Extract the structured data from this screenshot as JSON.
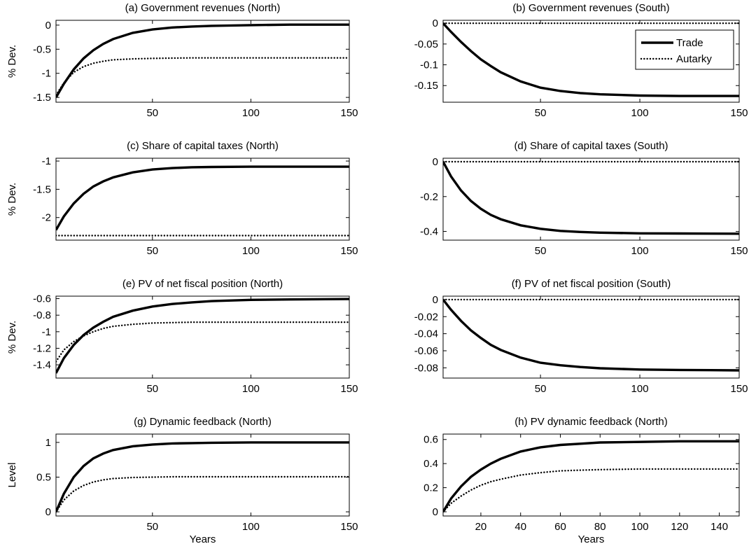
{
  "chart_data": [
    {
      "id": "a",
      "type": "line",
      "title": "(a) Government revenues (North)",
      "ylabel": "% Dev.",
      "xlabel": "",
      "xlim": [
        1,
        150
      ],
      "ylim": [
        -1.6,
        0.1
      ],
      "xticks": [
        50,
        100,
        150
      ],
      "yticks": [
        0,
        -0.5,
        -1,
        -1.5
      ],
      "ytick_labels": [
        "0",
        "-0.5",
        "-1",
        "-1.5"
      ],
      "series": [
        {
          "name": "Trade",
          "style": "solid",
          "x": [
            1,
            5,
            10,
            15,
            20,
            25,
            30,
            40,
            50,
            60,
            70,
            80,
            100,
            120,
            150
          ],
          "y": [
            -1.5,
            -1.22,
            -0.92,
            -0.69,
            -0.52,
            -0.39,
            -0.29,
            -0.16,
            -0.09,
            -0.05,
            -0.03,
            -0.015,
            0.0,
            0.01,
            0.01
          ]
        },
        {
          "name": "Autarky",
          "style": "dotted",
          "x": [
            1,
            5,
            10,
            15,
            20,
            25,
            30,
            40,
            50,
            60,
            70,
            80,
            100,
            120,
            150
          ],
          "y": [
            -1.45,
            -1.2,
            -0.98,
            -0.86,
            -0.79,
            -0.75,
            -0.72,
            -0.7,
            -0.69,
            -0.685,
            -0.68,
            -0.68,
            -0.68,
            -0.68,
            -0.68
          ]
        }
      ]
    },
    {
      "id": "b",
      "type": "line",
      "title": "(b) Government revenues (South)",
      "ylabel": "",
      "xlabel": "",
      "xlim": [
        1,
        150
      ],
      "ylim": [
        -0.19,
        0.007
      ],
      "xticks": [
        50,
        100,
        150
      ],
      "yticks": [
        0,
        -0.05,
        -0.1,
        -0.15
      ],
      "ytick_labels": [
        "0",
        "-0.05",
        "-0.1",
        "-0.15"
      ],
      "legend": {
        "placement": "top-right",
        "entries": [
          "Trade",
          "Autarky"
        ]
      },
      "series": [
        {
          "name": "Trade",
          "style": "solid",
          "x": [
            1,
            5,
            10,
            15,
            20,
            25,
            30,
            40,
            50,
            60,
            70,
            80,
            100,
            120,
            150
          ],
          "y": [
            0.0,
            -0.021,
            -0.045,
            -0.067,
            -0.087,
            -0.103,
            -0.118,
            -0.14,
            -0.155,
            -0.163,
            -0.168,
            -0.171,
            -0.174,
            -0.175,
            -0.175
          ]
        },
        {
          "name": "Autarky",
          "style": "dotted",
          "x": [
            1,
            150
          ],
          "y": [
            0,
            0
          ]
        }
      ]
    },
    {
      "id": "c",
      "type": "line",
      "title": "(c) Share of capital taxes (North)",
      "ylabel": "% Dev.",
      "xlabel": "",
      "xlim": [
        1,
        150
      ],
      "ylim": [
        -2.4,
        -0.95
      ],
      "xticks": [
        50,
        100,
        150
      ],
      "yticks": [
        -1,
        -1.5,
        -2
      ],
      "ytick_labels": [
        "-1",
        "-1.5",
        "-2"
      ],
      "series": [
        {
          "name": "Trade",
          "style": "solid",
          "x": [
            1,
            5,
            10,
            15,
            20,
            25,
            30,
            40,
            50,
            60,
            70,
            80,
            100,
            120,
            150
          ],
          "y": [
            -2.22,
            -1.98,
            -1.75,
            -1.58,
            -1.45,
            -1.36,
            -1.29,
            -1.2,
            -1.15,
            -1.125,
            -1.11,
            -1.105,
            -1.1,
            -1.1,
            -1.1
          ]
        },
        {
          "name": "Autarky",
          "style": "dotted",
          "x": [
            1,
            150
          ],
          "y": [
            -2.32,
            -2.32
          ]
        }
      ]
    },
    {
      "id": "d",
      "type": "line",
      "title": "(d) Share of capital taxes (South)",
      "ylabel": "",
      "xlabel": "",
      "xlim": [
        1,
        150
      ],
      "ylim": [
        -0.45,
        0.02
      ],
      "xticks": [
        50,
        100,
        150
      ],
      "yticks": [
        0,
        -0.2,
        -0.4
      ],
      "ytick_labels": [
        "0",
        "-0.2",
        "-0.4"
      ],
      "series": [
        {
          "name": "Trade",
          "style": "solid",
          "x": [
            1,
            5,
            10,
            15,
            20,
            25,
            30,
            40,
            50,
            60,
            70,
            80,
            100,
            120,
            150
          ],
          "y": [
            0.0,
            -0.085,
            -0.165,
            -0.225,
            -0.27,
            -0.305,
            -0.33,
            -0.365,
            -0.385,
            -0.397,
            -0.403,
            -0.407,
            -0.411,
            -0.412,
            -0.413
          ]
        },
        {
          "name": "Autarky",
          "style": "dotted",
          "x": [
            1,
            150
          ],
          "y": [
            0,
            0
          ]
        }
      ]
    },
    {
      "id": "e",
      "type": "line",
      "title": "(e) PV of net fiscal position (North)",
      "ylabel": "% Dev.",
      "xlabel": "",
      "xlim": [
        1,
        150
      ],
      "ylim": [
        -1.56,
        -0.57
      ],
      "xticks": [
        50,
        100,
        150
      ],
      "yticks": [
        -0.6,
        -0.8,
        -1,
        -1.2,
        -1.4
      ],
      "ytick_labels": [
        "-0.6",
        "-0.8",
        "-1",
        "-1.2",
        "-1.4"
      ],
      "series": [
        {
          "name": "Trade",
          "style": "solid",
          "x": [
            1,
            5,
            10,
            15,
            20,
            25,
            30,
            40,
            50,
            60,
            70,
            80,
            100,
            120,
            150
          ],
          "y": [
            -1.5,
            -1.32,
            -1.16,
            -1.04,
            -0.95,
            -0.88,
            -0.82,
            -0.745,
            -0.695,
            -0.665,
            -0.645,
            -0.63,
            -0.615,
            -0.61,
            -0.605
          ]
        },
        {
          "name": "Autarky",
          "style": "dotted",
          "x": [
            1,
            5,
            10,
            15,
            20,
            25,
            30,
            40,
            50,
            60,
            70,
            80,
            100,
            120,
            150
          ],
          "y": [
            -1.36,
            -1.22,
            -1.12,
            -1.05,
            -1.0,
            -0.96,
            -0.935,
            -0.91,
            -0.895,
            -0.89,
            -0.885,
            -0.885,
            -0.885,
            -0.885,
            -0.885
          ]
        }
      ]
    },
    {
      "id": "f",
      "type": "line",
      "title": "(f) PV of net fiscal position (South)",
      "ylabel": "",
      "xlabel": "",
      "xlim": [
        1,
        150
      ],
      "ylim": [
        -0.092,
        0.004
      ],
      "xticks": [
        50,
        100,
        150
      ],
      "yticks": [
        0,
        -0.02,
        -0.04,
        -0.06,
        -0.08
      ],
      "ytick_labels": [
        "0",
        "-0.02",
        "-0.04",
        "-0.06",
        "-0.08"
      ],
      "series": [
        {
          "name": "Trade",
          "style": "solid",
          "x": [
            1,
            5,
            10,
            15,
            20,
            25,
            30,
            40,
            50,
            60,
            70,
            80,
            100,
            120,
            150
          ],
          "y": [
            0.0,
            -0.012,
            -0.025,
            -0.036,
            -0.045,
            -0.053,
            -0.059,
            -0.068,
            -0.074,
            -0.077,
            -0.079,
            -0.0805,
            -0.082,
            -0.0825,
            -0.083
          ]
        },
        {
          "name": "Autarky",
          "style": "dotted",
          "x": [
            1,
            150
          ],
          "y": [
            0,
            0
          ]
        }
      ]
    },
    {
      "id": "g",
      "type": "line",
      "title": "(g) Dynamic feedback (North)",
      "ylabel": "Level",
      "xlabel": "Years",
      "xlim": [
        1,
        150
      ],
      "ylim": [
        -0.06,
        1.12
      ],
      "xticks": [
        50,
        100,
        150
      ],
      "yticks": [
        0,
        0.5,
        1
      ],
      "ytick_labels": [
        "0",
        "0.5",
        "1"
      ],
      "series": [
        {
          "name": "Trade",
          "style": "solid",
          "x": [
            1,
            5,
            10,
            15,
            20,
            25,
            30,
            40,
            50,
            60,
            70,
            80,
            100,
            120,
            150
          ],
          "y": [
            0.0,
            0.26,
            0.5,
            0.66,
            0.77,
            0.84,
            0.89,
            0.945,
            0.97,
            0.985,
            0.99,
            0.995,
            1.0,
            1.0,
            1.0
          ]
        },
        {
          "name": "Autarky",
          "style": "dotted",
          "x": [
            1,
            5,
            10,
            15,
            20,
            25,
            30,
            40,
            50,
            60,
            70,
            80,
            100,
            120,
            150
          ],
          "y": [
            0.0,
            0.17,
            0.3,
            0.38,
            0.43,
            0.46,
            0.48,
            0.495,
            0.5,
            0.505,
            0.505,
            0.505,
            0.505,
            0.505,
            0.505
          ]
        }
      ]
    },
    {
      "id": "h",
      "type": "line",
      "title": "(h) PV dynamic feedback (North)",
      "ylabel": "",
      "xlabel": "Years",
      "xlim": [
        1,
        150
      ],
      "ylim": [
        -0.035,
        0.645
      ],
      "xticks": [
        20,
        40,
        60,
        80,
        100,
        120,
        140
      ],
      "yticks": [
        0,
        0.2,
        0.4,
        0.6
      ],
      "ytick_labels": [
        "0",
        "0.2",
        "0.4",
        "0.6"
      ],
      "series": [
        {
          "name": "Trade",
          "style": "solid",
          "x": [
            1,
            5,
            10,
            15,
            20,
            25,
            30,
            40,
            50,
            60,
            70,
            80,
            100,
            120,
            150
          ],
          "y": [
            0.0,
            0.11,
            0.21,
            0.29,
            0.35,
            0.4,
            0.44,
            0.5,
            0.535,
            0.555,
            0.565,
            0.575,
            0.58,
            0.585,
            0.585
          ]
        },
        {
          "name": "Autarky",
          "style": "dotted",
          "x": [
            1,
            5,
            10,
            15,
            20,
            25,
            30,
            40,
            50,
            60,
            70,
            80,
            100,
            120,
            150
          ],
          "y": [
            0.0,
            0.07,
            0.13,
            0.18,
            0.22,
            0.25,
            0.27,
            0.305,
            0.325,
            0.34,
            0.345,
            0.35,
            0.355,
            0.355,
            0.355
          ]
        }
      ]
    }
  ]
}
